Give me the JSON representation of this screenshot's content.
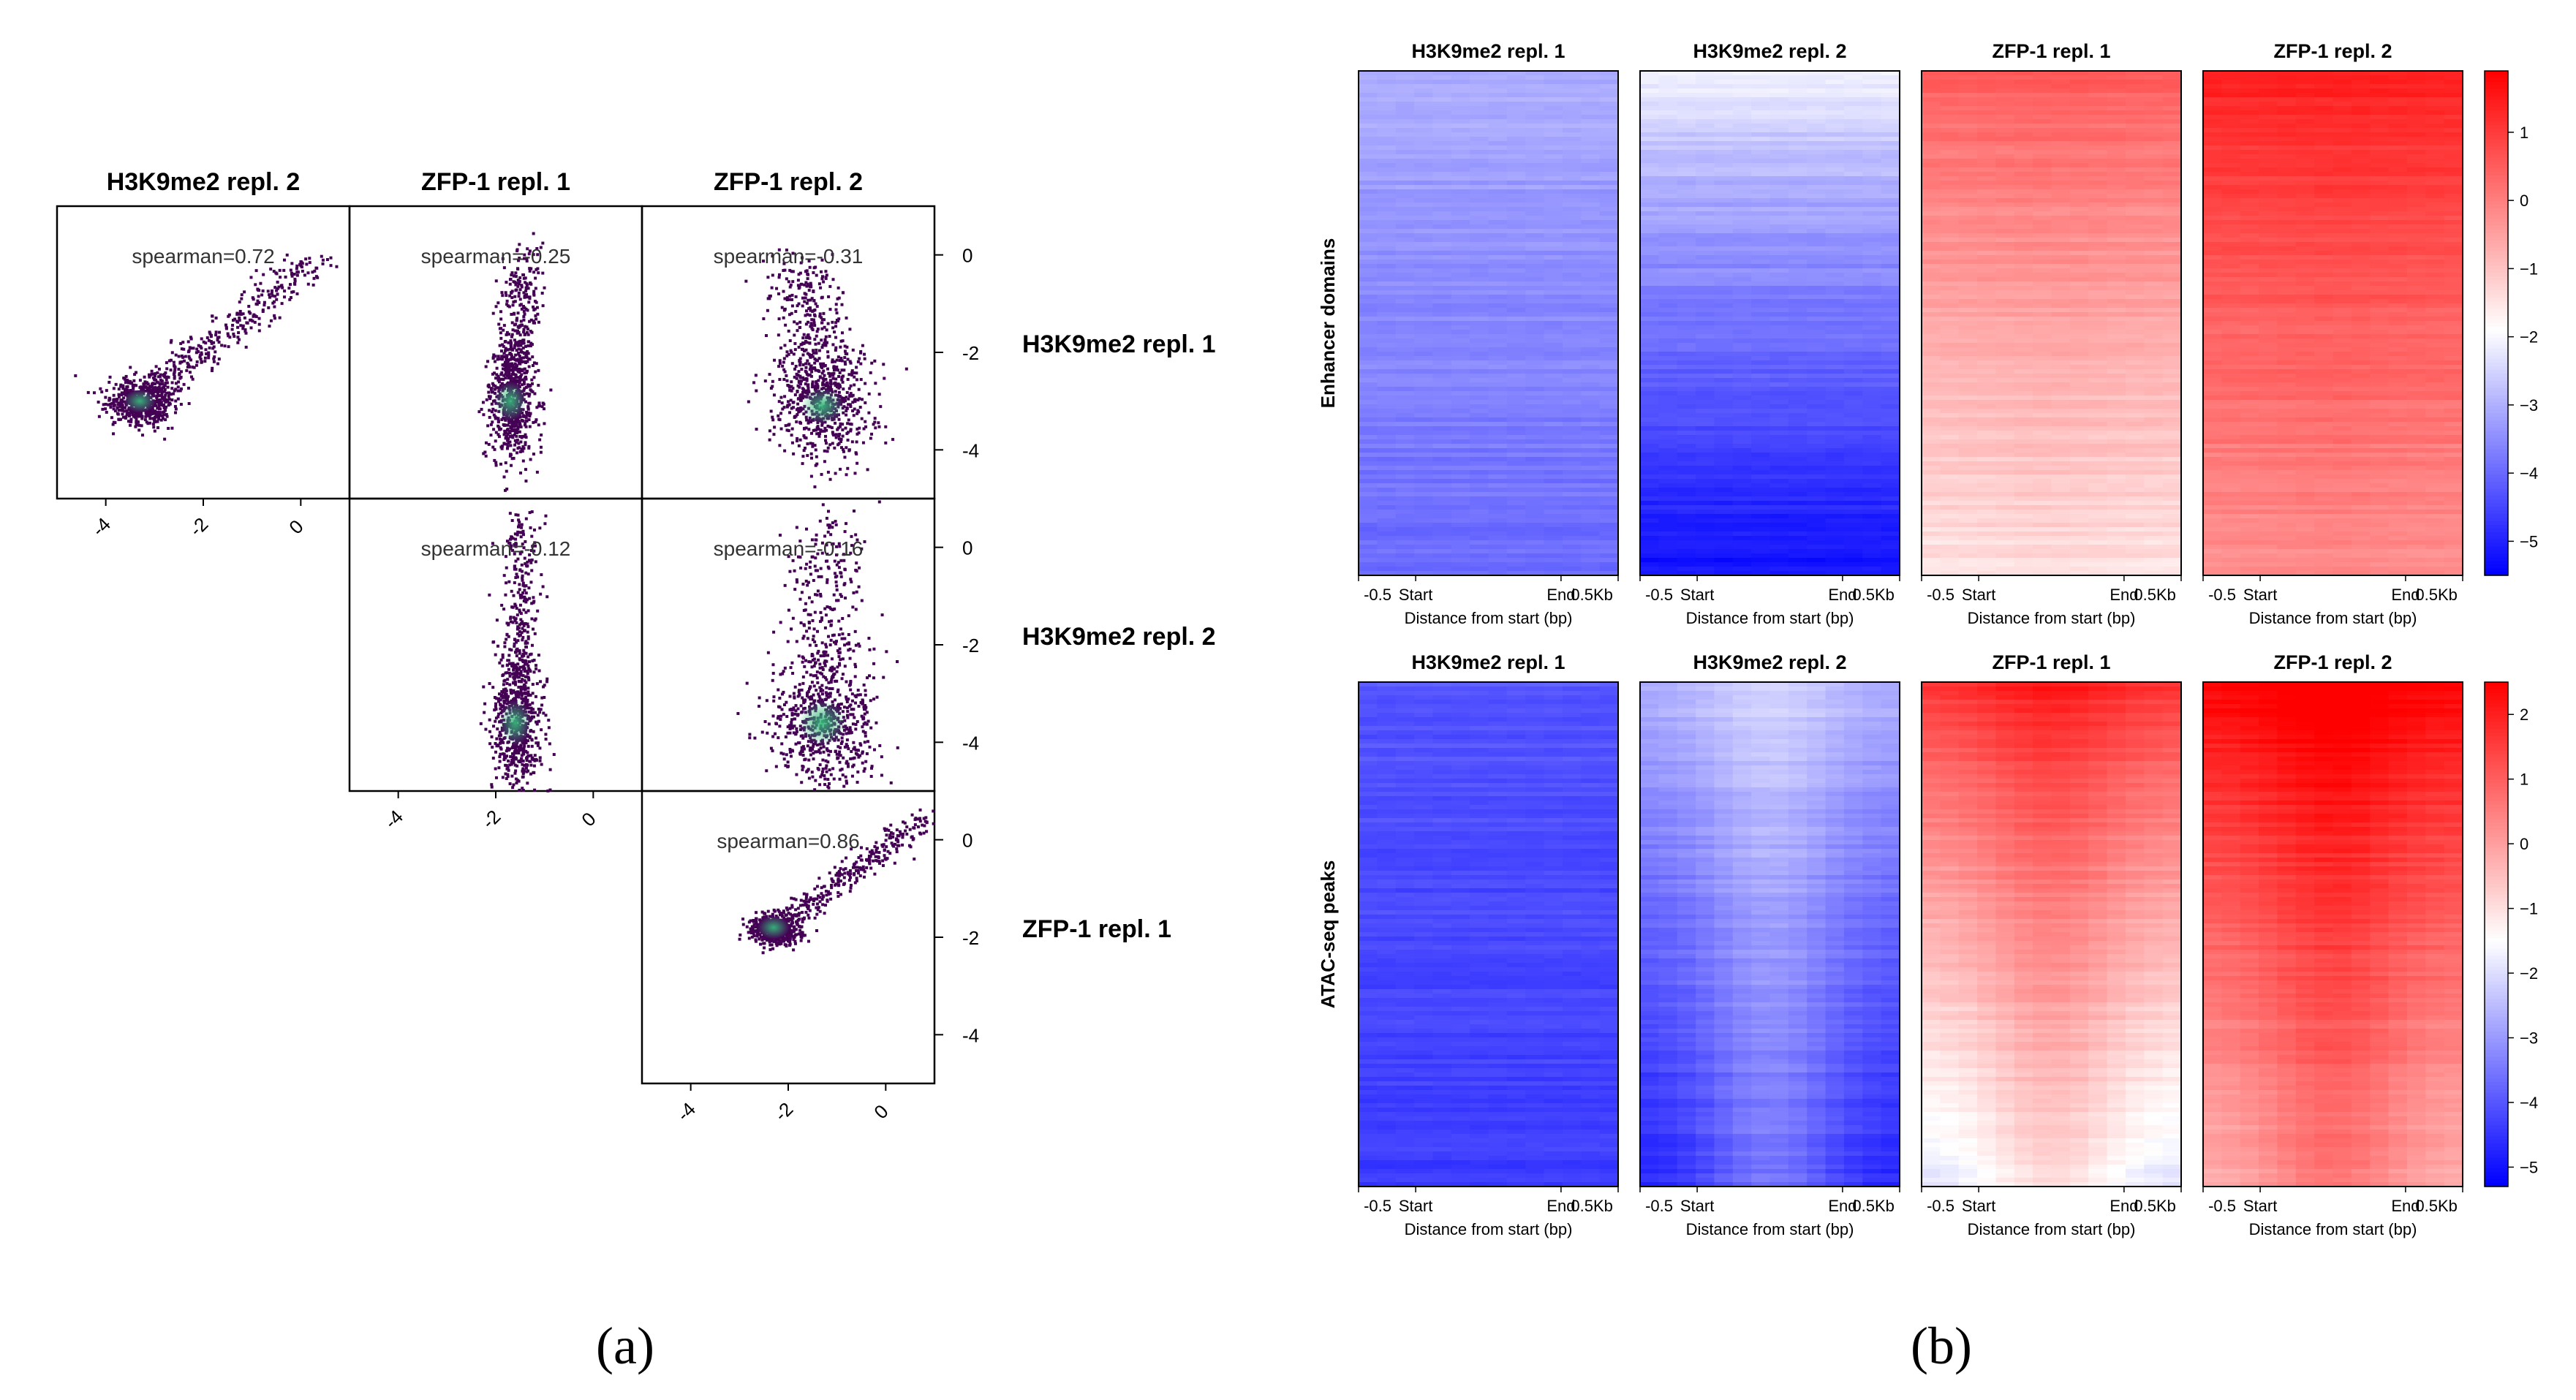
{
  "chart_data": [
    {
      "panel": "(a)",
      "panel_label": "(a)",
      "type": "scatter",
      "subtype": "pairwise density scatter matrix (log values)",
      "column_headers": [
        "H3K9me2 repl. 2",
        "ZFP-1 repl. 1",
        "ZFP-1 repl. 2"
      ],
      "row_labels": [
        "H3K9me2 repl. 1",
        "H3K9me2 repl. 2",
        "ZFP-1 repl. 1"
      ],
      "axis_range": [
        -5,
        1
      ],
      "x_ticks": [
        "-4",
        "-2",
        "0"
      ],
      "y_ticks": [
        "0",
        "-2",
        "-4"
      ],
      "cells": [
        {
          "row": "H3K9me2 repl. 1",
          "col": "H3K9me2 repl. 2",
          "label": "spearman=0.72",
          "spearman": 0.72,
          "cloud": {
            "center": [
              -3.3,
              -3.0
            ],
            "spread": [
              0.35,
              0.25
            ],
            "trend_to": [
              0.3,
              0.0
            ]
          }
        },
        {
          "row": "H3K9me2 repl. 1",
          "col": "ZFP-1 repl. 1",
          "label": "spearman=-0.25",
          "spearman": -0.25,
          "cloud": {
            "center": [
              -1.7,
              -3.0
            ],
            "spread": [
              0.25,
              0.6
            ],
            "trend_to": [
              -1.4,
              -0.2
            ]
          }
        },
        {
          "row": "H3K9me2 repl. 1",
          "col": "ZFP-1 repl. 2",
          "label": "spearman=-0.31",
          "spearman": -0.31,
          "cloud": {
            "center": [
              -1.3,
              -3.1
            ],
            "spread": [
              0.5,
              0.55
            ],
            "trend_to": [
              -1.7,
              -0.3
            ]
          }
        },
        {
          "row": "H3K9me2 repl. 2",
          "col": "ZFP-1 repl. 1",
          "label": "spearman=-0.12",
          "spearman": -0.12,
          "cloud": {
            "center": [
              -1.6,
              -3.6
            ],
            "spread": [
              0.25,
              0.7
            ],
            "trend_to": [
              -1.5,
              0.5
            ]
          }
        },
        {
          "row": "H3K9me2 repl. 2",
          "col": "ZFP-1 repl. 2",
          "label": "spearman=-0.16",
          "spearman": -0.16,
          "cloud": {
            "center": [
              -1.3,
              -3.6
            ],
            "spread": [
              0.55,
              0.7
            ],
            "trend_to": [
              -1.2,
              0.5
            ]
          }
        },
        {
          "row": "ZFP-1 repl. 1",
          "col": "ZFP-1 repl. 2",
          "label": "spearman=0.86",
          "spearman": 0.86,
          "cloud": {
            "center": [
              -2.3,
              -1.8
            ],
            "spread": [
              0.25,
              0.15
            ],
            "trend_to": [
              0.8,
              0.5
            ]
          }
        }
      ]
    },
    {
      "panel": "(b)",
      "panel_label": "(b)",
      "type": "heatmap",
      "columns": [
        "H3K9me2 repl. 1",
        "H3K9me2 repl. 2",
        "ZFP-1 repl. 1",
        "ZFP-1 repl. 2"
      ],
      "x_ticks": [
        "-0.5",
        "Start",
        "End",
        "0.5Kb"
      ],
      "xlabel": "Distance from start (bp)",
      "colormap": [
        "#0000ff",
        "#ffffff",
        "#ff0000"
      ],
      "rows": [
        {
          "ylabel": "Enhancer domains",
          "colorbar_range": [
            -5.5,
            1.9
          ],
          "colorbar_ticks": [
            "1",
            "0",
            "−1",
            "−2",
            "−3",
            "−4",
            "−5"
          ],
          "column_values": [
            {
              "top": -3.0,
              "bottom": -4.0,
              "center_boost": 0.0
            },
            {
              "top": -2.0,
              "bottom": -5.3,
              "center_boost": 0.0
            },
            {
              "top": 0.6,
              "bottom": -1.5,
              "center_boost": 0.1
            },
            {
              "top": 1.5,
              "bottom": -0.3,
              "center_boost": 0.1
            }
          ]
        },
        {
          "ylabel": "ATAC-seq peaks",
          "colorbar_range": [
            -5.3,
            2.5
          ],
          "colorbar_ticks": [
            "2",
            "1",
            "0",
            "−1",
            "−2",
            "−3",
            "−4",
            "−5"
          ],
          "column_values": [
            {
              "top": -4.0,
              "bottom": -4.4,
              "center_boost": 0.0
            },
            {
              "top": -2.6,
              "bottom": -4.8,
              "center_boost": 1.2
            },
            {
              "top": 1.7,
              "bottom": -1.9,
              "center_boost": 1.0
            },
            {
              "top": 2.5,
              "bottom": -0.3,
              "center_boost": 0.9
            }
          ]
        }
      ]
    }
  ]
}
